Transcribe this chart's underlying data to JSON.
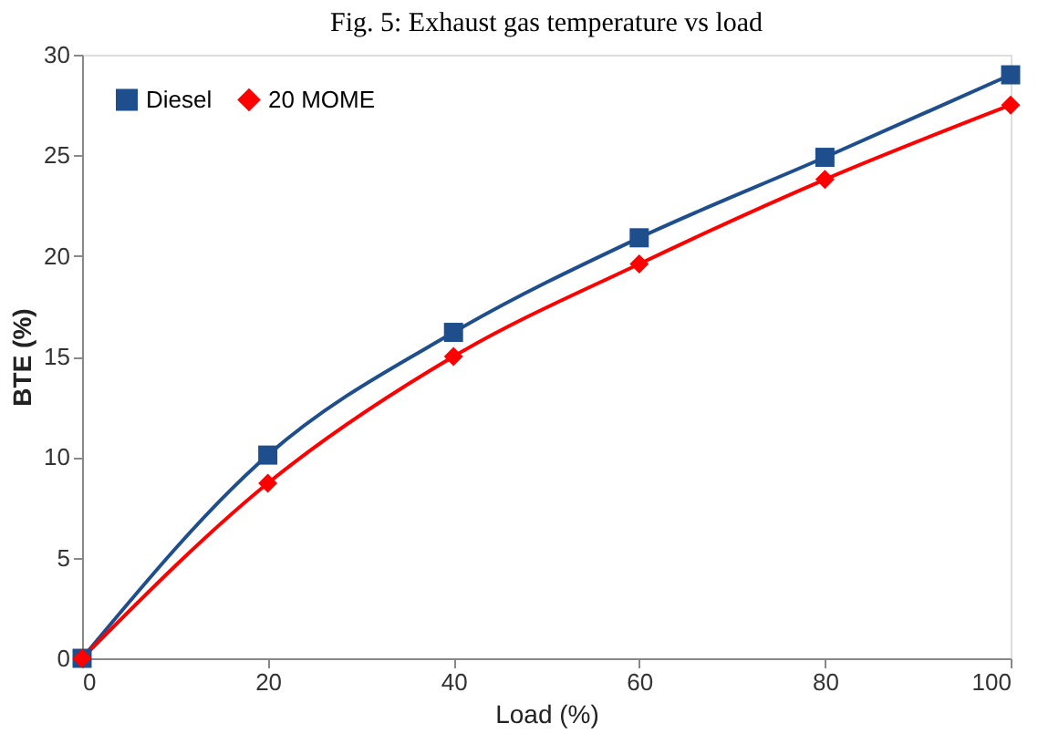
{
  "chart_data": {
    "type": "line",
    "title": "Fig. 5: Exhaust gas temperature vs load",
    "xlabel": "Load (%)",
    "ylabel": "BTE  (%)",
    "x": [
      0,
      20,
      40,
      60,
      80,
      100
    ],
    "xlim": [
      0,
      100
    ],
    "xticks": [
      0,
      20,
      40,
      60,
      80,
      100
    ],
    "ylim": [
      0,
      30
    ],
    "yticks": [
      0,
      5,
      10,
      15,
      20,
      25,
      30
    ],
    "series": [
      {
        "name": "Diesel",
        "color": "#1f4e8c",
        "marker": "square",
        "values": [
          0,
          10.1,
          16.2,
          20.9,
          24.9,
          29.0
        ]
      },
      {
        "name": "20 MOME",
        "color": "#ff0000",
        "marker": "diamond",
        "values": [
          0,
          8.7,
          15.0,
          19.6,
          23.8,
          27.5
        ]
      }
    ],
    "legend": "top left",
    "grid": false,
    "line_style": "solid"
  }
}
